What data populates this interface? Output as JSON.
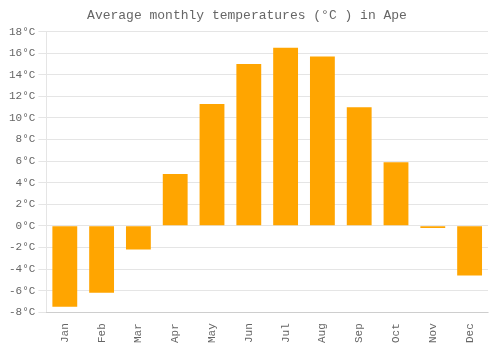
{
  "chart_data": {
    "type": "bar",
    "title": "Average monthly temperatures (°C ) in Ape",
    "categories": [
      "Jan",
      "Feb",
      "Mar",
      "Apr",
      "May",
      "Jun",
      "Jul",
      "Aug",
      "Sep",
      "Oct",
      "Nov",
      "Dec"
    ],
    "values": [
      -7.5,
      -6.2,
      -2.2,
      4.8,
      11.3,
      15.0,
      16.5,
      15.7,
      11.0,
      5.9,
      -0.2,
      -4.6
    ],
    "color": "#FFA500",
    "ylim": [
      -8,
      18
    ],
    "yticks": [
      {
        "value": -8,
        "label": "-8°C"
      },
      {
        "value": -6,
        "label": "-6°C"
      },
      {
        "value": -4,
        "label": "-4°C"
      },
      {
        "value": -2,
        "label": "-2°C"
      },
      {
        "value": 0,
        "label": "0°C"
      },
      {
        "value": 2,
        "label": "2°C"
      },
      {
        "value": 4,
        "label": "4°C"
      },
      {
        "value": 6,
        "label": "6°C"
      },
      {
        "value": 8,
        "label": "8°C"
      },
      {
        "value": 10,
        "label": "10°C"
      },
      {
        "value": 12,
        "label": "12°C"
      },
      {
        "value": 14,
        "label": "14°C"
      },
      {
        "value": 16,
        "label": "16°C"
      },
      {
        "value": 18,
        "label": "18°C"
      }
    ],
    "grid": true
  }
}
